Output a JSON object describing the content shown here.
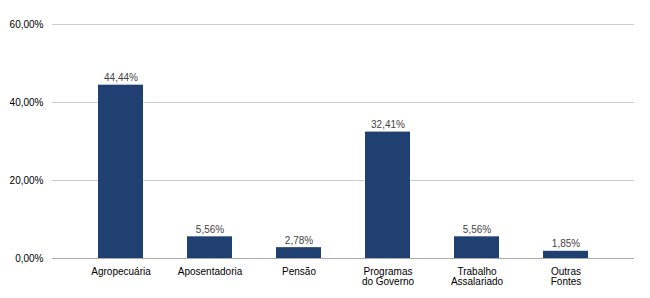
{
  "chart_data": {
    "type": "bar",
    "categories": [
      "Agropecuária",
      "Aposentadoria",
      "Pensão",
      "Programas do Governo",
      "Trabalho Assalariado",
      "Outras Fontes"
    ],
    "values": [
      44.44,
      5.56,
      2.78,
      32.41,
      5.56,
      1.85
    ],
    "value_labels": [
      "44,44%",
      "5,56%",
      "2,78%",
      "32,41%",
      "5,56%",
      "1,85%"
    ],
    "color": "#1F4070",
    "ylim": [
      0,
      60
    ],
    "yticks": [
      {
        "value": 0,
        "label": "0,00%"
      },
      {
        "value": 20,
        "label": "20,00%"
      },
      {
        "value": 40,
        "label": "40,00%"
      },
      {
        "value": 60,
        "label": "60,00%"
      }
    ],
    "grid": true,
    "data_labels": true
  }
}
